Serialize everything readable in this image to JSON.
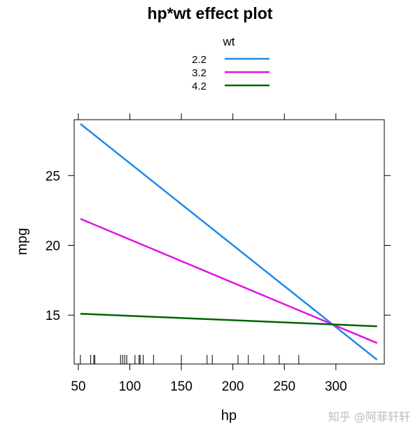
{
  "chart_data": {
    "type": "line",
    "title": "hp*wt effect plot",
    "xlabel": "hp",
    "ylabel": "mpg",
    "xlim": [
      46,
      347
    ],
    "ylim": [
      11.5,
      29.0
    ],
    "xticks": [
      50,
      100,
      150,
      200,
      250,
      300
    ],
    "xtick_labels": [
      "50",
      "100",
      "150",
      "200",
      "250",
      "300"
    ],
    "yticks": [
      15,
      20,
      25
    ],
    "ytick_labels": [
      "15",
      "20",
      "25"
    ],
    "legend": {
      "title": "wt",
      "position": "top-center"
    },
    "rug": [
      52,
      62,
      65,
      66,
      91,
      93,
      95,
      97,
      105,
      109,
      110,
      113,
      123,
      150,
      175,
      180,
      205,
      215,
      230,
      245,
      264
    ],
    "x": [
      52,
      340
    ],
    "series": [
      {
        "name": "2.2",
        "color": "#1e8be6",
        "values": [
          28.7,
          11.8
        ]
      },
      {
        "name": "3.2",
        "color": "#e014e6",
        "values": [
          21.9,
          13.0
        ]
      },
      {
        "name": "4.2",
        "color": "#006400",
        "values": [
          15.1,
          14.2
        ]
      }
    ]
  },
  "watermark": "知乎 @阿菲轩轩"
}
